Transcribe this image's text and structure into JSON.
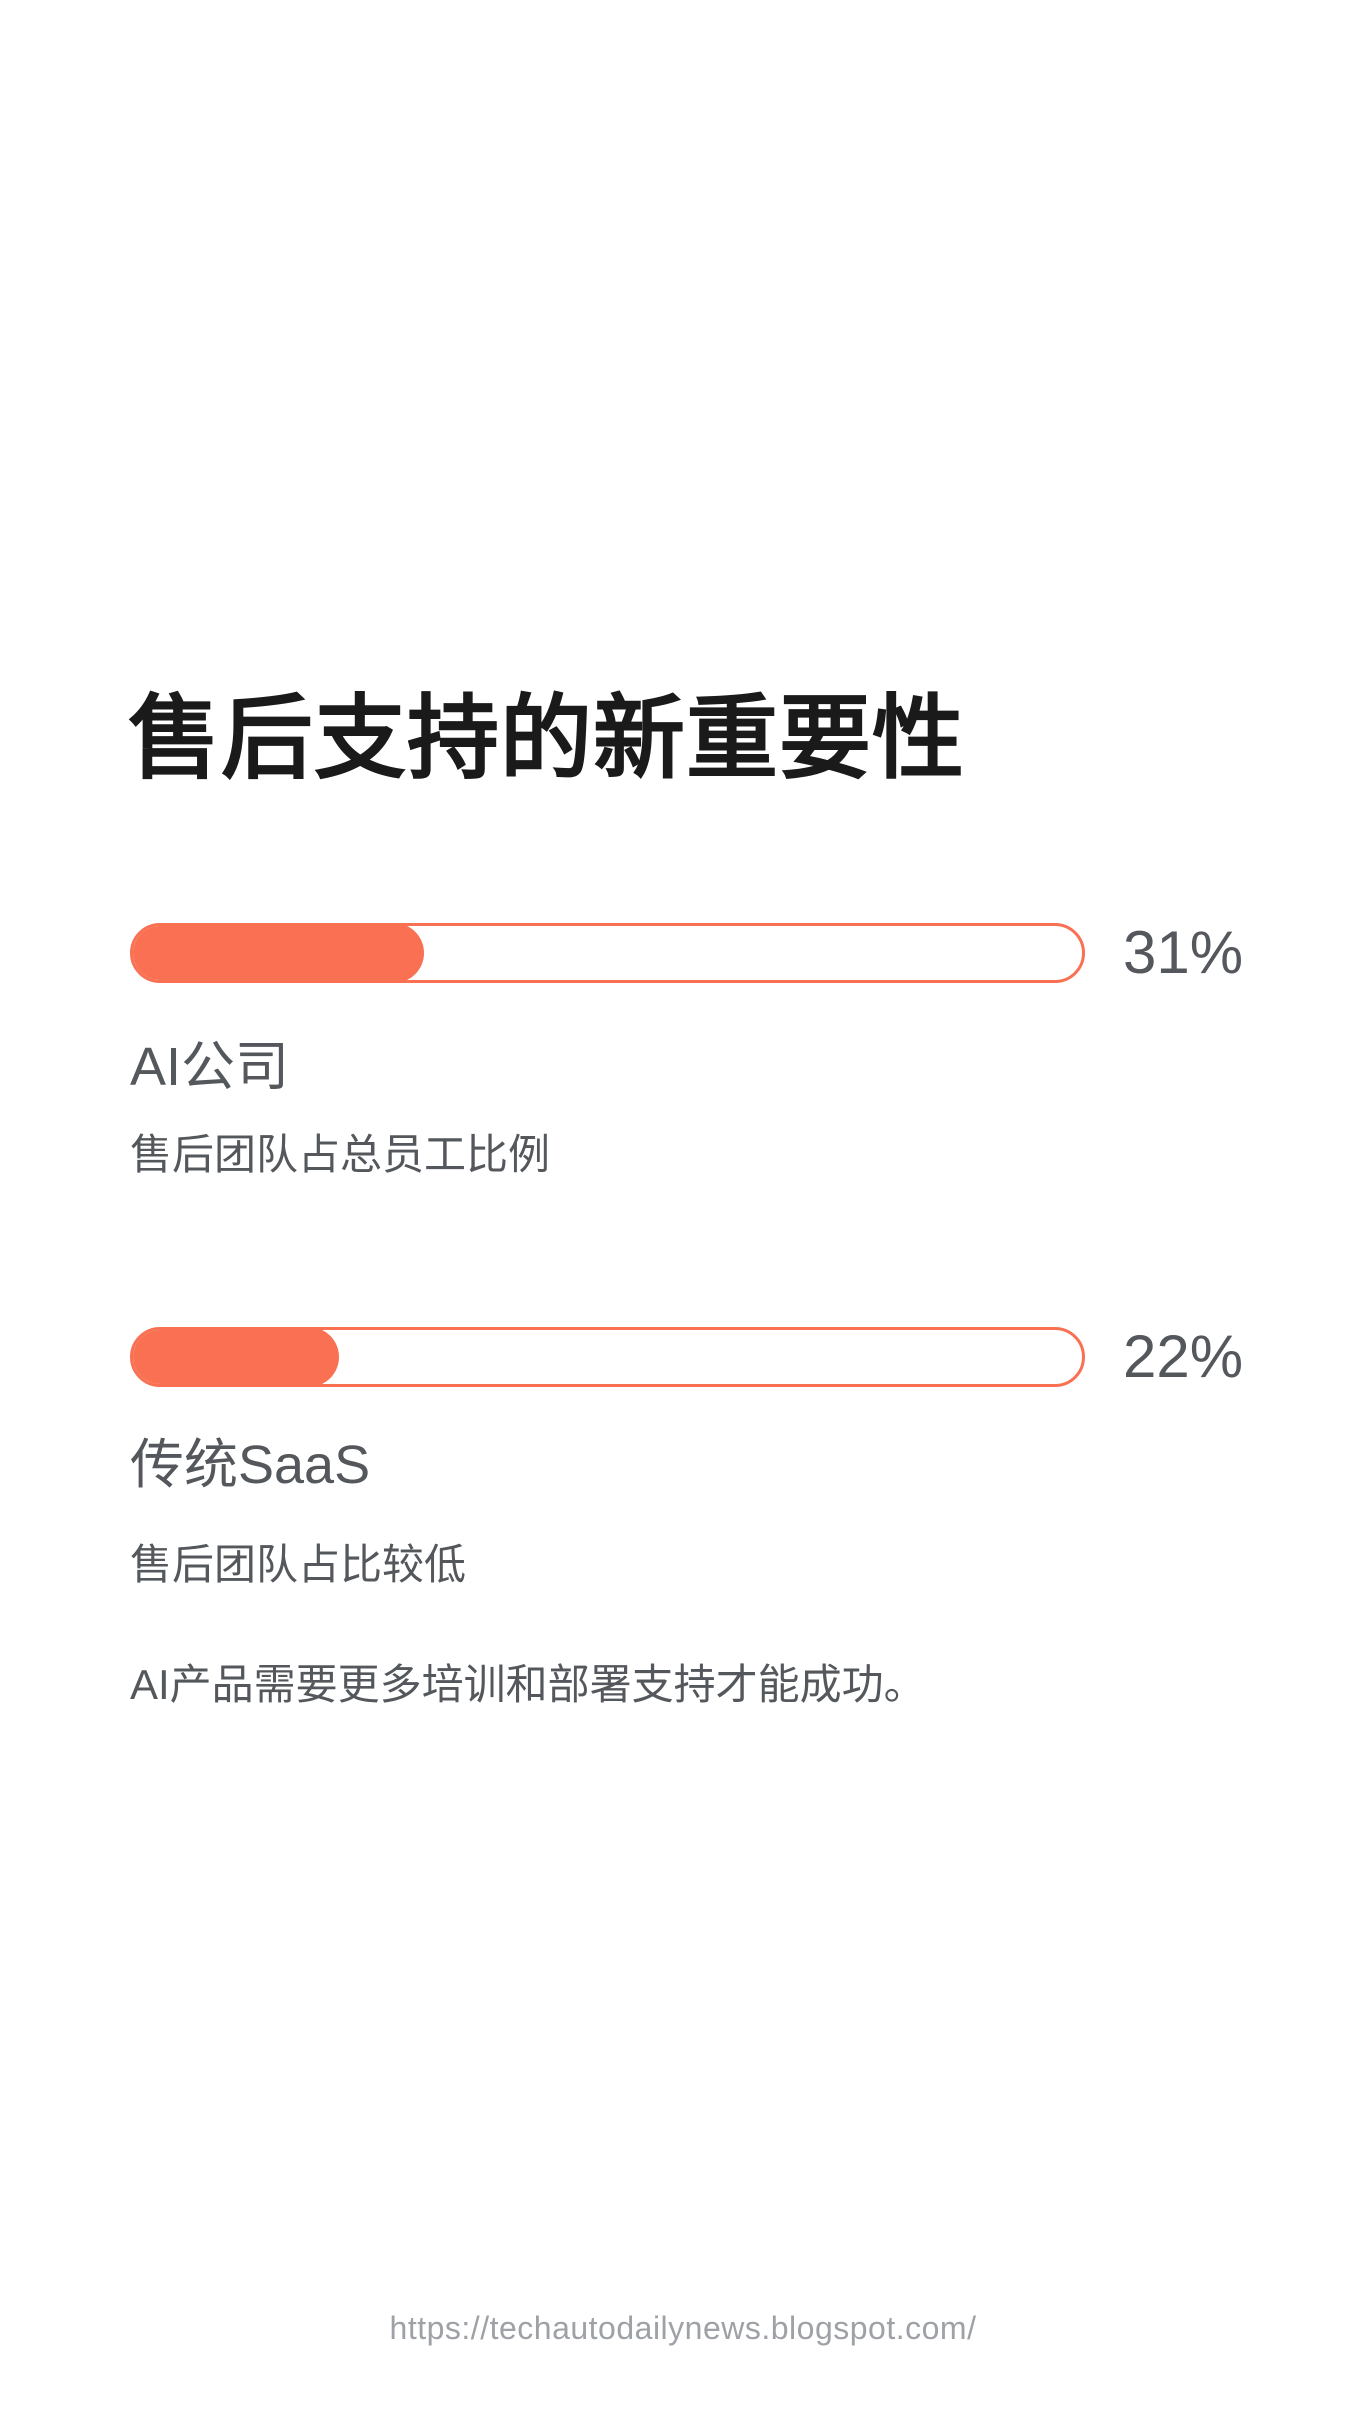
{
  "chart_data": {
    "type": "bar",
    "orientation": "horizontal",
    "title": "售后支持的新重要性",
    "categories": [
      "AI公司",
      "传统SaaS"
    ],
    "values": [
      31,
      22
    ],
    "value_labels": [
      "31%",
      "22%"
    ],
    "descriptions": [
      "售后团队占总员工比例",
      "售后团队占比较低"
    ],
    "annotation": "AI产品需要更多培训和部署支持才能成功。",
    "xlim": [
      0,
      100
    ],
    "unit": "percent",
    "grid": false,
    "legend": "none",
    "bar_style": "rounded-pill-outline-track"
  },
  "footer": {
    "url": "https://techautodailynews.blogspot.com/"
  },
  "colors": {
    "accent": "#F97053",
    "title_text": "#1A1A1A",
    "body_text": "#54585C",
    "footer_text": "#9EA2A6",
    "background": "#FFFFFF"
  }
}
